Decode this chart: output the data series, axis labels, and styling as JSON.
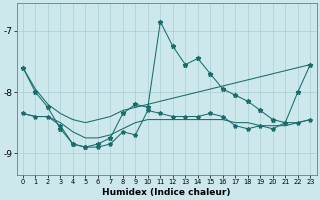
{
  "xlabel": "Humidex (Indice chaleur)",
  "bg_color": "#cce8ec",
  "grid_color": "#aacdd4",
  "line_color": "#1a6b6b",
  "x": [
    0,
    1,
    2,
    3,
    4,
    5,
    6,
    7,
    8,
    9,
    10,
    11,
    12,
    13,
    14,
    15,
    16,
    17,
    18,
    19,
    20,
    21,
    22,
    23
  ],
  "line_main": [
    -7.6,
    -8.0,
    -8.25,
    -8.6,
    -8.85,
    -8.9,
    -8.85,
    -8.75,
    -8.35,
    -8.2,
    -8.25,
    -6.85,
    -7.25,
    -7.55,
    -7.45,
    -7.7,
    -7.95,
    -8.05,
    -8.15,
    -8.3,
    -8.45,
    -8.5,
    -8.0,
    -7.55
  ],
  "line_sec": [
    -8.35,
    -8.4,
    -8.4,
    -8.55,
    -8.85,
    -8.9,
    -8.9,
    -8.85,
    -8.65,
    -8.7,
    -8.3,
    -8.35,
    -8.4,
    -8.4,
    -8.4,
    -8.35,
    -8.4,
    -8.55,
    -8.6,
    -8.55,
    -8.6,
    -8.5,
    -8.5,
    -8.45
  ],
  "line_upper": [
    -7.6,
    -7.95,
    -8.2,
    -8.35,
    -8.45,
    -8.5,
    -8.45,
    -8.4,
    -8.3,
    -8.25,
    -8.2,
    -8.15,
    -8.1,
    -8.05,
    -8.0,
    -7.95,
    -7.9,
    -7.85,
    -7.8,
    -7.75,
    -7.7,
    -7.65,
    -7.6,
    -7.55
  ],
  "line_lower": [
    -8.35,
    -8.4,
    -8.4,
    -8.5,
    -8.65,
    -8.75,
    -8.75,
    -8.7,
    -8.6,
    -8.5,
    -8.45,
    -8.45,
    -8.45,
    -8.45,
    -8.45,
    -8.45,
    -8.45,
    -8.5,
    -8.5,
    -8.55,
    -8.55,
    -8.55,
    -8.5,
    -8.45
  ],
  "ylim": [
    -9.35,
    -6.55
  ],
  "yticks": [
    -9,
    -8,
    -7
  ],
  "xlim": [
    -0.5,
    23.5
  ],
  "xticks": [
    0,
    1,
    2,
    3,
    4,
    5,
    6,
    7,
    8,
    9,
    10,
    11,
    12,
    13,
    14,
    15,
    16,
    17,
    18,
    19,
    20,
    21,
    22,
    23
  ]
}
